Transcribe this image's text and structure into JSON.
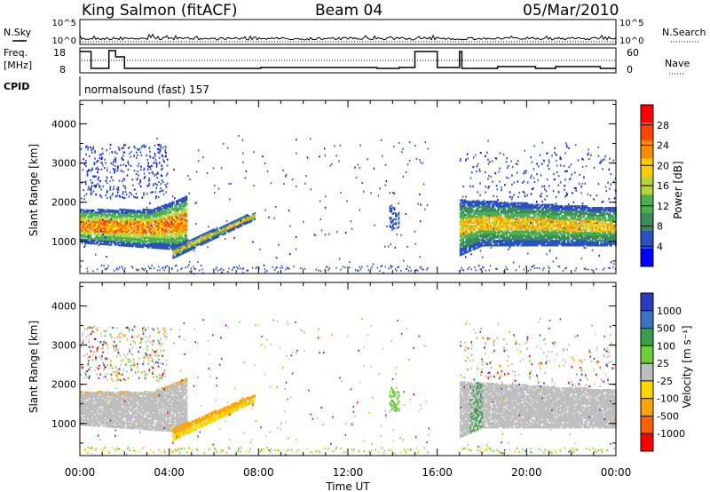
{
  "header": {
    "station": "King Salmon (fitACF)",
    "beam": "Beam 04",
    "date": "05/Mar/2010"
  },
  "top_panels": {
    "nsky_label": "N.Sky",
    "nsearch_label": "N.Search",
    "freq_label_1": "Freq.",
    "freq_label_2": "[MHz]",
    "nave_label": "Nave",
    "cpid_label": "CPID",
    "cpid_text": "normalsound (fast) 157",
    "noise_ticks_left": [
      "10^5",
      "10^0"
    ],
    "noise_ticks_right": [
      "10^5",
      "10^0"
    ],
    "freq_ticks": [
      "18",
      "8"
    ],
    "nave_ticks": [
      "60",
      "0"
    ]
  },
  "colors": {
    "power_scale": [
      "#0000ff",
      "#2a52be",
      "#3d8b5a",
      "#4caf50",
      "#b5d33a",
      "#ffcc00",
      "#ff8c00",
      "#ff4500",
      "#ff0000"
    ],
    "velocity_scale": [
      "#2b3cbf",
      "#3f71c8",
      "#3a9d49",
      "#6ccf3a",
      "#bebebe",
      "#ffd400",
      "#ffa500",
      "#ff6000",
      "#ff0000"
    ]
  },
  "chart_data": [
    {
      "type": "heatmap",
      "name": "power",
      "xlabel": "",
      "ylabel": "Slant Range [km]",
      "xlim": [
        "00:00",
        "24:00"
      ],
      "ylim": [
        180,
        4600
      ],
      "y_ticks": [
        1000,
        2000,
        3000,
        4000
      ],
      "colorbar": {
        "label": "Power [dB]",
        "ticks": [
          4,
          8,
          12,
          16,
          20,
          24,
          28
        ],
        "range": [
          0,
          32
        ]
      },
      "regions": [
        {
          "t_start": "00:00",
          "t_end": "04:50",
          "range_km": [
            900,
            1900
          ],
          "value_db": "12-28"
        },
        {
          "t_start": "04:10",
          "t_end": "07:50",
          "range_km": [
            600,
            1700
          ],
          "value_db": "8-24"
        },
        {
          "t_start": "13:50",
          "t_end": "14:20",
          "range_km": [
            1500,
            2000
          ],
          "value_db": "4-8"
        },
        {
          "t_start": "17:00",
          "t_end": "24:00",
          "range_km": [
            900,
            2100
          ],
          "value_db": "8-24"
        }
      ]
    },
    {
      "type": "heatmap",
      "name": "velocity",
      "xlabel": "Time UT",
      "ylabel": "Slant Range [km]",
      "xlim": [
        "00:00",
        "24:00"
      ],
      "x_ticks": [
        "00:00",
        "04:00",
        "08:00",
        "12:00",
        "16:00",
        "20:00",
        "00:00"
      ],
      "ylim": [
        180,
        4600
      ],
      "y_ticks": [
        1000,
        2000,
        3000,
        4000
      ],
      "colorbar": {
        "label": "Velocity [m s⁻¹]",
        "ticks": [
          "1000",
          "500",
          "100",
          "25",
          "-25",
          "-100",
          "-500",
          "-1000"
        ]
      },
      "regions": [
        {
          "t_start": "00:00",
          "t_end": "04:50",
          "range_km": [
            900,
            1900
          ],
          "value_ms": "-25 to 25"
        },
        {
          "t_start": "04:10",
          "t_end": "07:50",
          "range_km": [
            600,
            1700
          ],
          "value_ms": "-100 to -25"
        },
        {
          "t_start": "13:50",
          "t_end": "14:20",
          "range_km": [
            1500,
            2000
          ],
          "value_ms": "25 to 100"
        },
        {
          "t_start": "17:00",
          "t_end": "24:00",
          "range_km": [
            900,
            2100
          ],
          "value_ms": "-25 to 25"
        }
      ]
    }
  ]
}
